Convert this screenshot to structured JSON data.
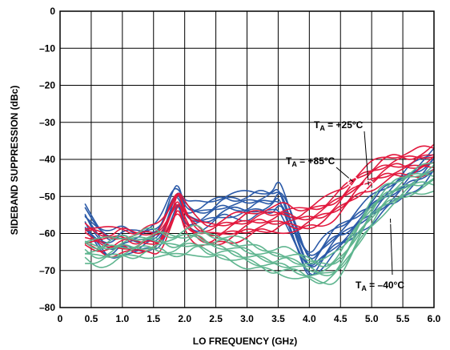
{
  "chart_data": {
    "type": "line",
    "title": "",
    "xlabel": "LO FREQUENCY (GHz)",
    "ylabel": "SIDEBAND SUPPRESSION (dBc)",
    "xlim": [
      0,
      6
    ],
    "ylim": [
      -80,
      0
    ],
    "x_ticks": [
      "0",
      "0.5",
      "1.0",
      "1.5",
      "2.0",
      "2.5",
      "3.0",
      "3.5",
      "4.0",
      "4.5",
      "5.0",
      "5.5",
      "6.0"
    ],
    "y_ticks": [
      "0",
      "–10",
      "–20",
      "–30",
      "–40",
      "–50",
      "–60",
      "–70",
      "–80"
    ],
    "grid": true,
    "annotations": [
      {
        "text_main": "T",
        "text_sub": "A",
        "text_rest": " = +25°C",
        "point": [
          4.95,
          -47
        ]
      },
      {
        "text_main": "T",
        "text_sub": "A",
        "text_rest": " = +85°C",
        "point": [
          4.7,
          -46
        ]
      },
      {
        "text_main": "T",
        "text_sub": "A",
        "text_rest": " = –40°C",
        "point": [
          5.3,
          -56
        ]
      }
    ],
    "series_colors": {
      "+25°C": "#2b5aa8",
      "+85°C": "#e2183d",
      "–40°C": "#5fb58f"
    },
    "series": [
      {
        "color": "#2b5aa8",
        "x": [
          0.4,
          0.6,
          0.8,
          1.0,
          1.2,
          1.4,
          1.6,
          1.8,
          1.9,
          2.0,
          2.2,
          2.4,
          2.6,
          2.8,
          3.0,
          3.2,
          3.4,
          3.5,
          3.6,
          3.8,
          4.0,
          4.2,
          4.4,
          4.6,
          4.8,
          5.0,
          5.2,
          5.4,
          5.6,
          5.8,
          6.0
        ],
        "y": [
          -56,
          -61,
          -64,
          -62,
          -63,
          -62,
          -61,
          -52,
          -50,
          -55,
          -56,
          -55,
          -53,
          -53,
          -53,
          -52,
          -52,
          -50,
          -53,
          -62,
          -70,
          -66,
          -62,
          -60,
          -57,
          -54,
          -51,
          -49,
          -46,
          -44,
          -41
        ]
      },
      {
        "color": "#e2183d",
        "x": [
          0.4,
          0.6,
          0.8,
          1.0,
          1.2,
          1.4,
          1.6,
          1.8,
          1.9,
          2.0,
          2.2,
          2.4,
          2.6,
          2.8,
          3.0,
          3.2,
          3.4,
          3.6,
          3.8,
          4.0,
          4.2,
          4.4,
          4.6,
          4.8,
          5.0,
          5.2,
          5.4,
          5.6,
          5.8,
          6.0
        ],
        "y": [
          -61,
          -62,
          -63,
          -62,
          -63,
          -62,
          -62,
          -55,
          -51,
          -56,
          -60,
          -61,
          -60,
          -59,
          -58,
          -57,
          -57,
          -56,
          -57,
          -56,
          -55,
          -53,
          -50,
          -47,
          -45,
          -43,
          -42,
          -42,
          -41,
          -40
        ]
      },
      {
        "color": "#5fb58f",
        "x": [
          0.4,
          0.6,
          0.8,
          1.0,
          1.2,
          1.4,
          1.6,
          1.8,
          2.0,
          2.2,
          2.4,
          2.6,
          2.8,
          3.0,
          3.2,
          3.4,
          3.6,
          3.8,
          4.0,
          4.2,
          4.4,
          4.6,
          4.8,
          5.0,
          5.2,
          5.4,
          5.6,
          5.8,
          6.0
        ],
        "y": [
          -65,
          -66,
          -65,
          -64,
          -64,
          -63,
          -63,
          -64,
          -63,
          -62,
          -64,
          -64,
          -65,
          -66,
          -67,
          -68,
          -68,
          -69,
          -70,
          -71,
          -70,
          -66,
          -60,
          -55,
          -51,
          -49,
          -47,
          -46,
          -45
        ]
      }
    ]
  }
}
